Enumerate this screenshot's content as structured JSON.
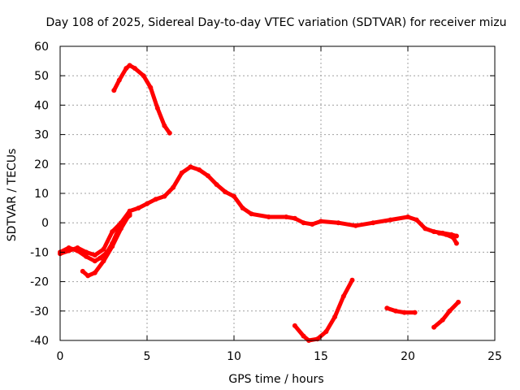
{
  "chart_data": {
    "type": "scatter",
    "title": "Day 108 of 2025, Sidereal Day-to-day VTEC variation (SDTVAR) for receiver mizu",
    "xlabel": "GPS time / hours",
    "ylabel": "SDTVAR / TECUs",
    "xlim": [
      0,
      25
    ],
    "ylim": [
      -40,
      60
    ],
    "xticks": [
      0,
      5,
      10,
      15,
      20,
      25
    ],
    "yticks": [
      -40,
      -30,
      -20,
      -10,
      0,
      10,
      20,
      30,
      40,
      50,
      60
    ],
    "grid": true,
    "series_color": "#ff0000",
    "series": [
      {
        "name": "main-track",
        "points": [
          [
            0,
            -10.5
          ],
          [
            0.5,
            -9.5
          ],
          [
            1,
            -8.5
          ],
          [
            1.5,
            -10
          ],
          [
            2,
            -11
          ],
          [
            2.5,
            -9
          ],
          [
            3,
            -3
          ],
          [
            3.5,
            0
          ],
          [
            4,
            4
          ],
          [
            4.5,
            5
          ],
          [
            5,
            6.5
          ],
          [
            5.5,
            8
          ],
          [
            6,
            9
          ],
          [
            6.5,
            12
          ],
          [
            7,
            17
          ],
          [
            7.5,
            19
          ],
          [
            8,
            18
          ],
          [
            8.5,
            16
          ],
          [
            9,
            13
          ],
          [
            9.5,
            10.5
          ],
          [
            10,
            9
          ],
          [
            10.5,
            5
          ],
          [
            11,
            3
          ],
          [
            12,
            2
          ],
          [
            13,
            2
          ],
          [
            13.5,
            1.5
          ],
          [
            14,
            0
          ],
          [
            14.5,
            -0.5
          ],
          [
            15,
            0.5
          ],
          [
            16,
            0
          ],
          [
            17,
            -1
          ],
          [
            18,
            0
          ],
          [
            19,
            1
          ],
          [
            20,
            2
          ],
          [
            20.5,
            1
          ],
          [
            21,
            -2
          ],
          [
            21.5,
            -3
          ],
          [
            22,
            -3.5
          ],
          [
            22.5,
            -4
          ],
          [
            22.8,
            -4.5
          ]
        ]
      },
      {
        "name": "lower-left-arc",
        "points": [
          [
            0,
            -10
          ],
          [
            0.5,
            -8.5
          ],
          [
            1,
            -9.5
          ],
          [
            1.5,
            -11.5
          ],
          [
            2,
            -13
          ],
          [
            2.3,
            -12
          ],
          [
            2.7,
            -10
          ],
          [
            3,
            -7
          ],
          [
            3.3,
            -3
          ],
          [
            3.6,
            0
          ],
          [
            4,
            2.5
          ]
        ]
      },
      {
        "name": "dip-arc",
        "points": [
          [
            1.3,
            -16.5
          ],
          [
            1.6,
            -18
          ],
          [
            2,
            -17
          ],
          [
            2.5,
            -13
          ],
          [
            3,
            -8
          ],
          [
            3.5,
            -2
          ],
          [
            4,
            3
          ]
        ]
      },
      {
        "name": "high-arc",
        "points": [
          [
            3.1,
            45
          ],
          [
            3.4,
            48.5
          ],
          [
            3.8,
            52.5
          ],
          [
            4,
            53.5
          ],
          [
            4.3,
            52.5
          ],
          [
            4.8,
            50
          ],
          [
            5.2,
            46
          ],
          [
            5.6,
            39
          ],
          [
            6,
            33
          ],
          [
            6.3,
            30.5
          ]
        ]
      },
      {
        "name": "tail-drop",
        "points": [
          [
            21.8,
            -3.5
          ],
          [
            22.2,
            -4
          ],
          [
            22.6,
            -5
          ],
          [
            22.8,
            -7
          ]
        ]
      },
      {
        "name": "low-v",
        "points": [
          [
            13.5,
            -35
          ],
          [
            14,
            -38.5
          ],
          [
            14.3,
            -40
          ],
          [
            14.8,
            -39.5
          ],
          [
            15.3,
            -37
          ],
          [
            15.8,
            -32
          ],
          [
            16.3,
            -25
          ],
          [
            16.8,
            -19.5
          ]
        ]
      },
      {
        "name": "mid-right-segment",
        "points": [
          [
            18.8,
            -29
          ],
          [
            19.3,
            -30
          ],
          [
            19.8,
            -30.5
          ],
          [
            20.4,
            -30.5
          ]
        ]
      },
      {
        "name": "right-low-arc",
        "points": [
          [
            21.5,
            -35.5
          ],
          [
            22,
            -33
          ],
          [
            22.4,
            -30
          ],
          [
            22.9,
            -27
          ]
        ]
      }
    ]
  }
}
